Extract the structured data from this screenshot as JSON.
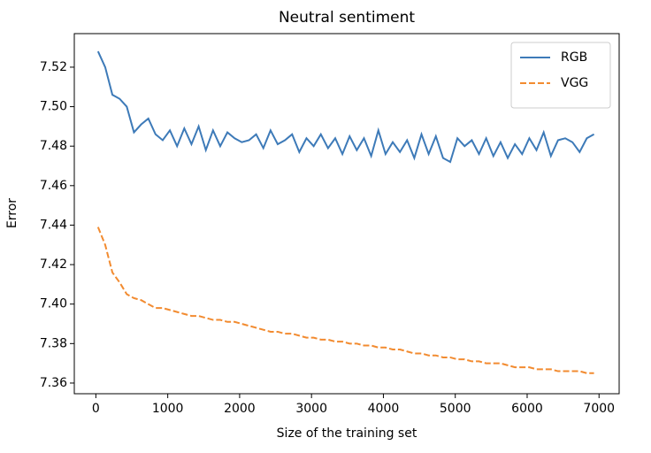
{
  "chart_data": {
    "type": "line",
    "title": "Neutral sentiment",
    "x_label": "Size of the training set",
    "y_label": "Error",
    "x": [
      30,
      130,
      230,
      330,
      430,
      530,
      630,
      730,
      830,
      930,
      1030,
      1130,
      1230,
      1330,
      1430,
      1530,
      1630,
      1730,
      1830,
      1930,
      2030,
      2130,
      2230,
      2330,
      2430,
      2530,
      2630,
      2730,
      2830,
      2930,
      3030,
      3130,
      3230,
      3330,
      3430,
      3530,
      3630,
      3730,
      3830,
      3930,
      4030,
      4130,
      4230,
      4330,
      4430,
      4530,
      4630,
      4730,
      4830,
      4930,
      5030,
      5130,
      5230,
      5330,
      5430,
      5530,
      5630,
      5730,
      5830,
      5930,
      6030,
      6130,
      6230,
      6330,
      6430,
      6530,
      6630,
      6730,
      6830,
      6930
    ],
    "series": [
      {
        "name": "RGB",
        "color": "#3d7ab8",
        "dash": "solid",
        "values": [
          7.528,
          7.52,
          7.506,
          7.504,
          7.5,
          7.487,
          7.491,
          7.494,
          7.486,
          7.483,
          7.488,
          7.48,
          7.489,
          7.481,
          7.49,
          7.478,
          7.488,
          7.48,
          7.487,
          7.484,
          7.482,
          7.483,
          7.486,
          7.479,
          7.488,
          7.481,
          7.483,
          7.486,
          7.477,
          7.484,
          7.48,
          7.486,
          7.479,
          7.484,
          7.476,
          7.485,
          7.478,
          7.484,
          7.475,
          7.488,
          7.476,
          7.482,
          7.477,
          7.483,
          7.474,
          7.486,
          7.476,
          7.485,
          7.474,
          7.472,
          7.484,
          7.48,
          7.483,
          7.476,
          7.484,
          7.475,
          7.482,
          7.474,
          7.481,
          7.476,
          7.484,
          7.478,
          7.487,
          7.475,
          7.483,
          7.484,
          7.482,
          7.477,
          7.484,
          7.486
        ]
      },
      {
        "name": "VGG",
        "color": "#f28b30",
        "dash": "dashed",
        "values": [
          7.439,
          7.43,
          7.416,
          7.411,
          7.405,
          7.403,
          7.402,
          7.4,
          7.398,
          7.398,
          7.397,
          7.396,
          7.395,
          7.394,
          7.394,
          7.393,
          7.392,
          7.392,
          7.391,
          7.391,
          7.39,
          7.389,
          7.388,
          7.387,
          7.386,
          7.386,
          7.385,
          7.385,
          7.384,
          7.383,
          7.383,
          7.382,
          7.382,
          7.381,
          7.381,
          7.38,
          7.38,
          7.379,
          7.379,
          7.378,
          7.378,
          7.377,
          7.377,
          7.376,
          7.375,
          7.375,
          7.374,
          7.374,
          7.373,
          7.373,
          7.372,
          7.372,
          7.371,
          7.371,
          7.37,
          7.37,
          7.37,
          7.369,
          7.368,
          7.368,
          7.368,
          7.367,
          7.367,
          7.367,
          7.366,
          7.366,
          7.366,
          7.366,
          7.365,
          7.365
        ]
      }
    ],
    "xlim": [
      -300,
      7280
    ],
    "ylim": [
      7.3546,
      7.537
    ],
    "xticks": [
      0,
      1000,
      2000,
      3000,
      4000,
      5000,
      6000,
      7000
    ],
    "yticks": [
      7.36,
      7.38,
      {
        "value": 7.4,
        "label": "7.40"
      },
      7.42,
      7.44,
      7.46,
      7.48,
      {
        "value": 7.5,
        "label": "7.50"
      },
      7.52
    ],
    "legend": "upper right"
  }
}
